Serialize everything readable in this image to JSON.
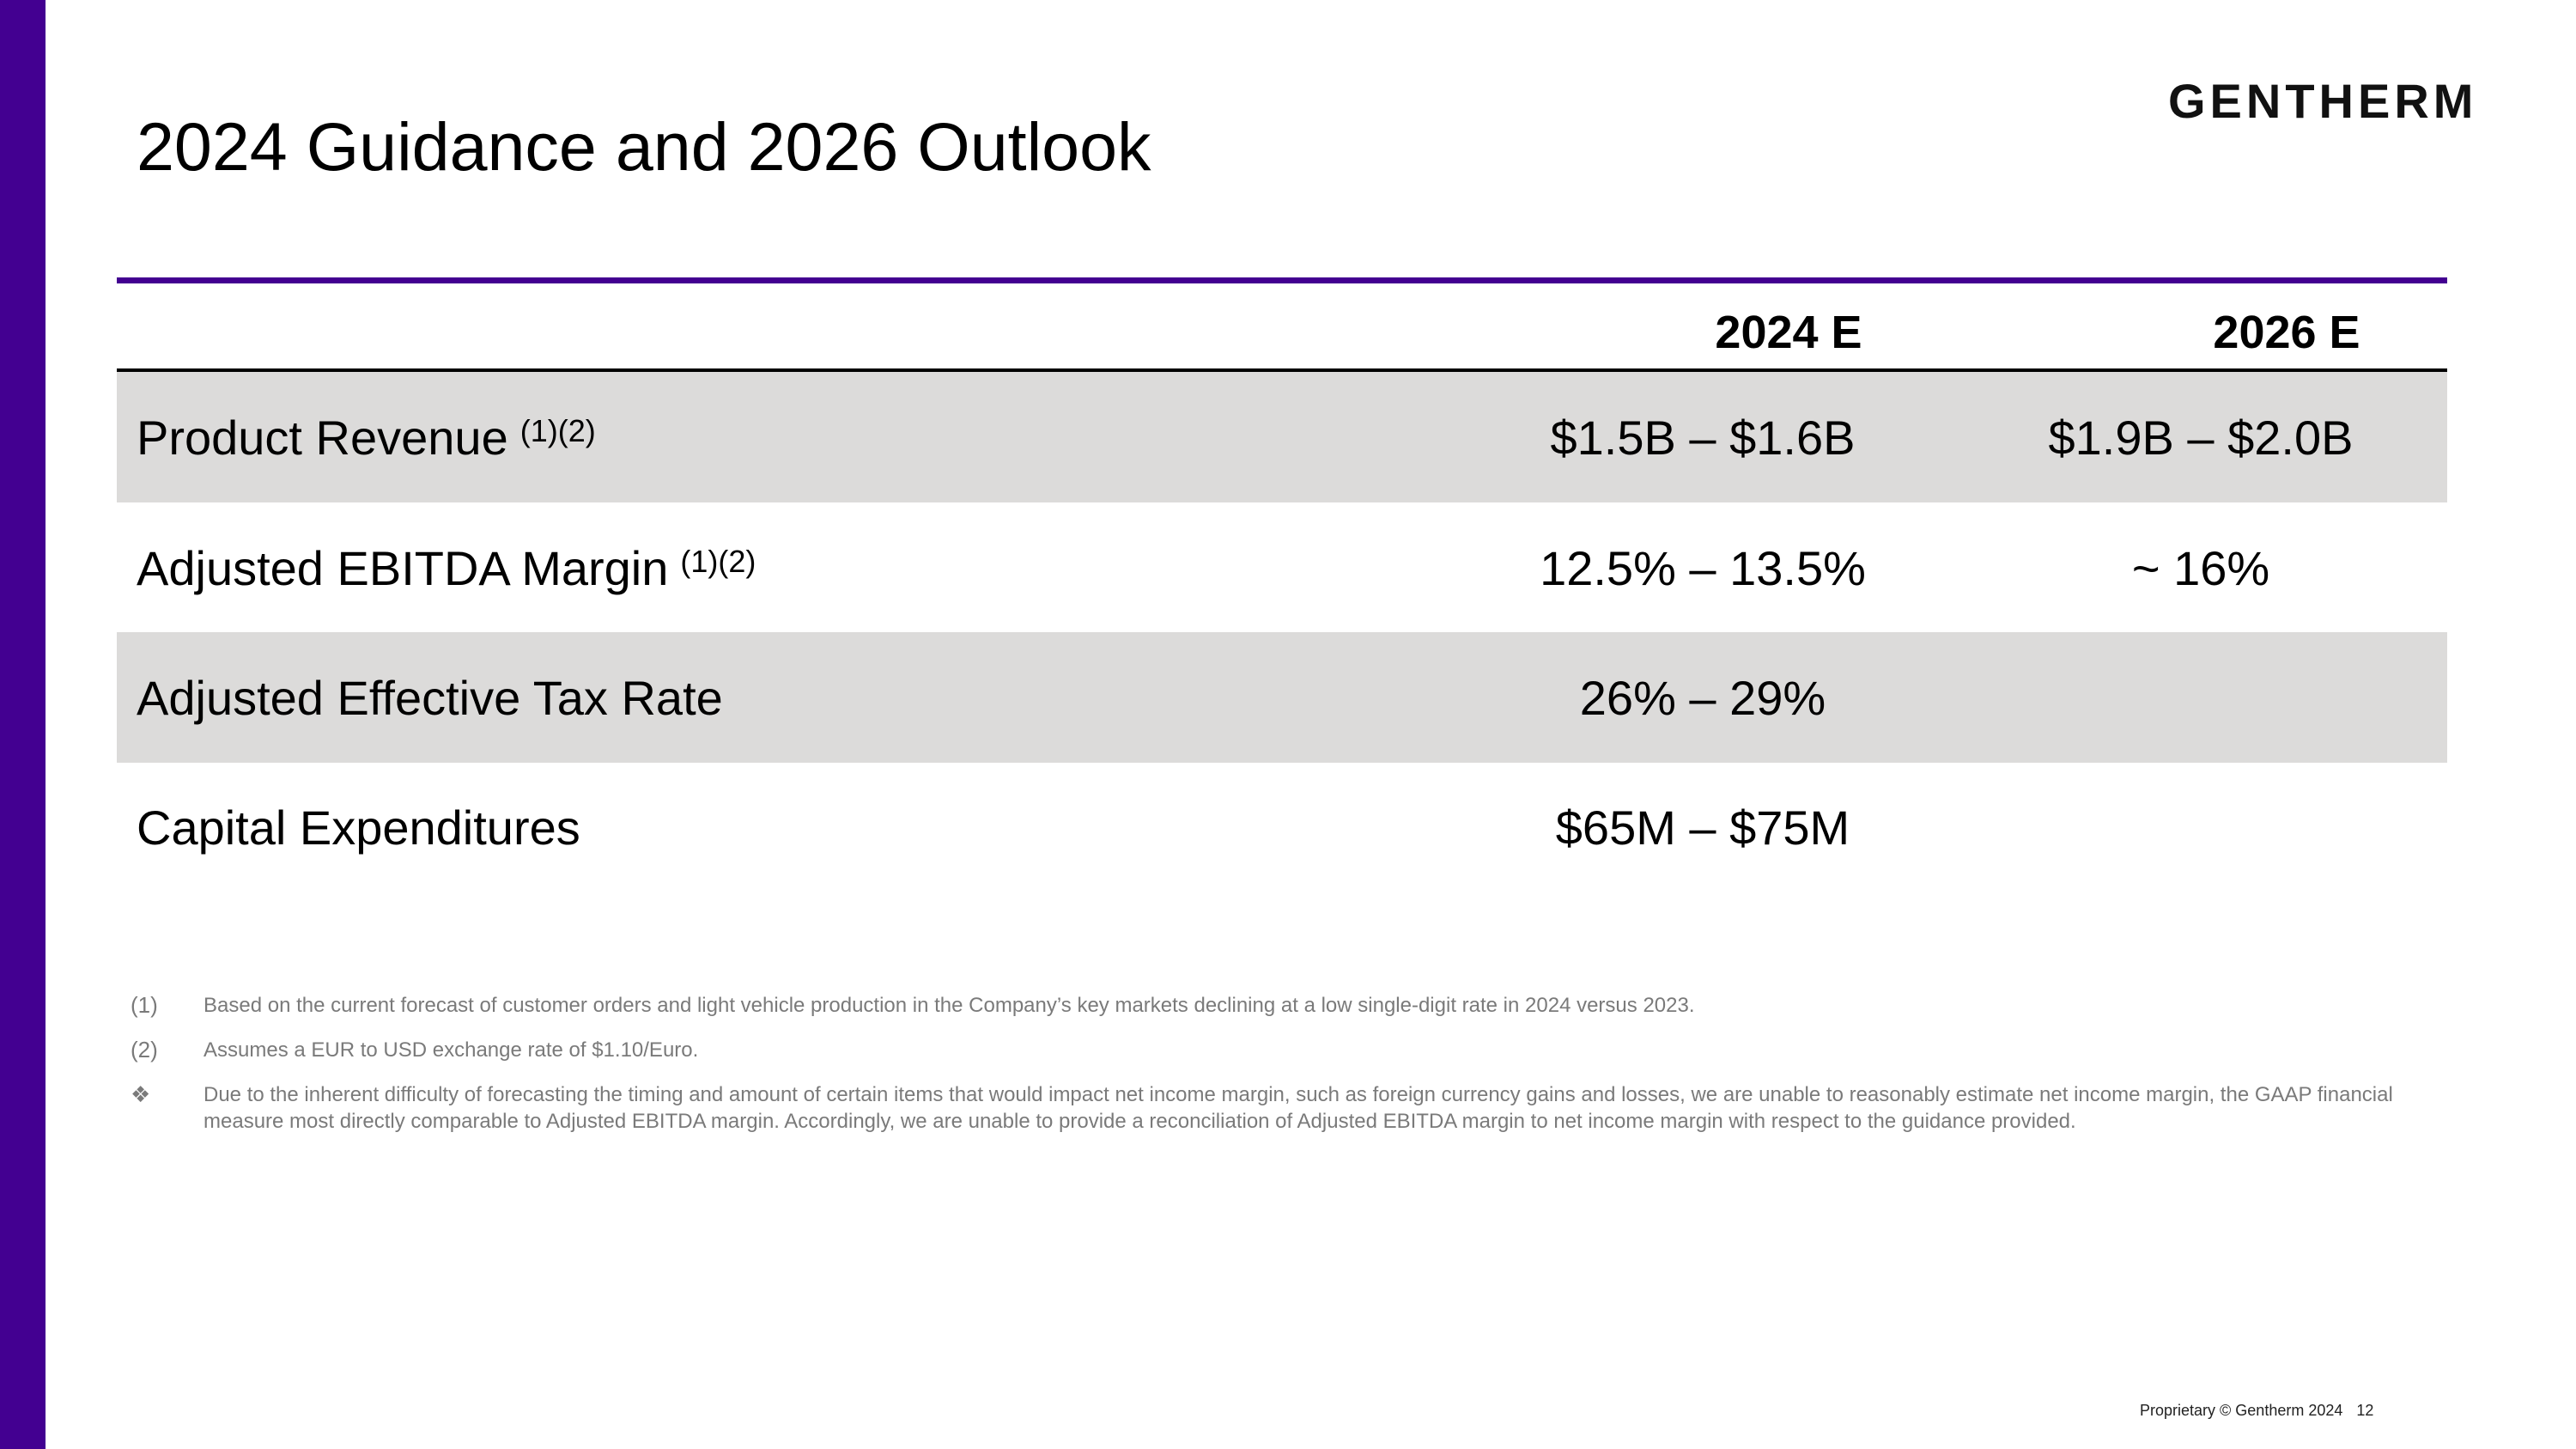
{
  "slide": {
    "title": "2024 Guidance and 2026 Outlook",
    "logo_text": "GENTHERM",
    "accent_color": "#430091"
  },
  "table": {
    "headers": [
      "2024 E",
      "2026 E"
    ],
    "rows": [
      {
        "label": "Product Revenue",
        "footnote_refs": "(1)(2)",
        "v2024": "$1.5B – $1.6B",
        "v2026": "$1.9B – $2.0B"
      },
      {
        "label": "Adjusted EBITDA Margin",
        "footnote_refs": "(1)(2)",
        "v2024": "12.5% – 13.5%",
        "v2026": "~ 16%"
      },
      {
        "label": "Adjusted Effective Tax Rate",
        "footnote_refs": "",
        "v2024": "26% – 29%",
        "v2026": ""
      },
      {
        "label": "Capital Expenditures",
        "footnote_refs": "",
        "v2024": "$65M – $75M",
        "v2026": ""
      }
    ],
    "shade_color": "#dcdbda"
  },
  "notes": [
    {
      "marker": "(1)",
      "text": "Based on the current forecast of customer orders and light vehicle production in the Company’s key markets declining at a low single-digit rate in 2024 versus 2023."
    },
    {
      "marker": "(2)",
      "text": "Assumes a EUR to USD exchange rate of $1.10/Euro."
    },
    {
      "marker": "❖",
      "text": "Due to the inherent difficulty of forecasting the timing and amount of certain items that would impact net income margin, such as foreign currency gains and losses, we are unable to reasonably estimate net income margin, the GAAP financial measure most directly comparable to Adjusted EBITDA margin. Accordingly, we are unable to provide a reconciliation of Adjusted EBITDA margin to net income margin with respect to the guidance provided."
    }
  ],
  "footer": {
    "text": "Proprietary © Gentherm 2024",
    "page_number": "12"
  }
}
